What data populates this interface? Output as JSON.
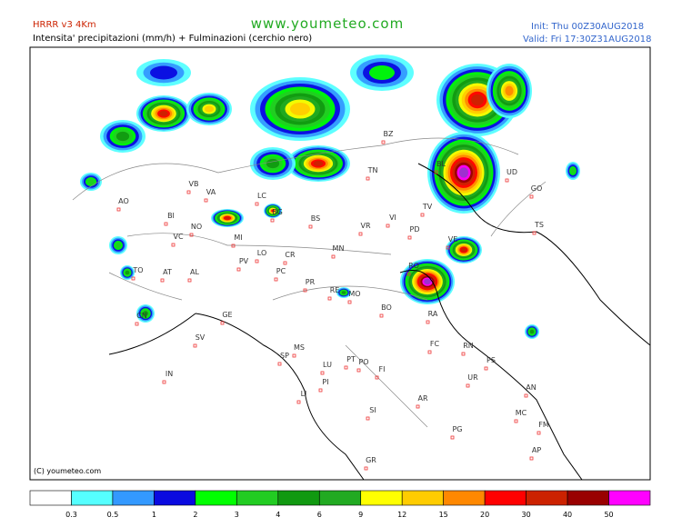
{
  "header": {
    "model": "HRRR v3 4Km",
    "subtitle": "Intensita' precipitazioni (mm/h) + Fulminazioni (cerchio nero)",
    "site": "www.youmeteo.com",
    "init": "Init: Thu 00Z30AUG2018",
    "valid": "Valid: Fri 17:30Z31AUG2018"
  },
  "map": {
    "copyright": "(C) youmeteo.com",
    "cities": [
      "BZ",
      "TN",
      "UD",
      "GO",
      "TS",
      "BL",
      "VB",
      "VA",
      "LC",
      "BG",
      "BS",
      "VR",
      "VI",
      "TV",
      "PD",
      "VE",
      "RO",
      "AO",
      "BI",
      "NO",
      "MI",
      "VC",
      "TO",
      "AT",
      "AL",
      "CN",
      "PV",
      "LO",
      "CR",
      "PC",
      "MN",
      "PR",
      "RE",
      "MO",
      "BO",
      "RA",
      "FC",
      "RN",
      "PS",
      "GE",
      "SV",
      "IN",
      "SP",
      "MS",
      "LU",
      "PT",
      "PO",
      "FI",
      "PI",
      "LI",
      "AR",
      "SI",
      "UR",
      "AN",
      "MC",
      "PG",
      "FM",
      "AP",
      "GR"
    ]
  },
  "legend": {
    "labels": [
      "0.3",
      "0.5",
      "1",
      "2",
      "3",
      "4",
      "6",
      "9",
      "12",
      "15",
      "20",
      "30",
      "40",
      "50"
    ],
    "colors": [
      "#ffffff",
      "#55ffff",
      "#3399ff",
      "#0a0ae0",
      "#00ff00",
      "#22cc22",
      "#119911",
      "#22aa22",
      "#ffff00",
      "#ffcc00",
      "#ff8800",
      "#ff0000",
      "#cc2200",
      "#990000",
      "#ff00ff",
      "#9933cc"
    ]
  }
}
